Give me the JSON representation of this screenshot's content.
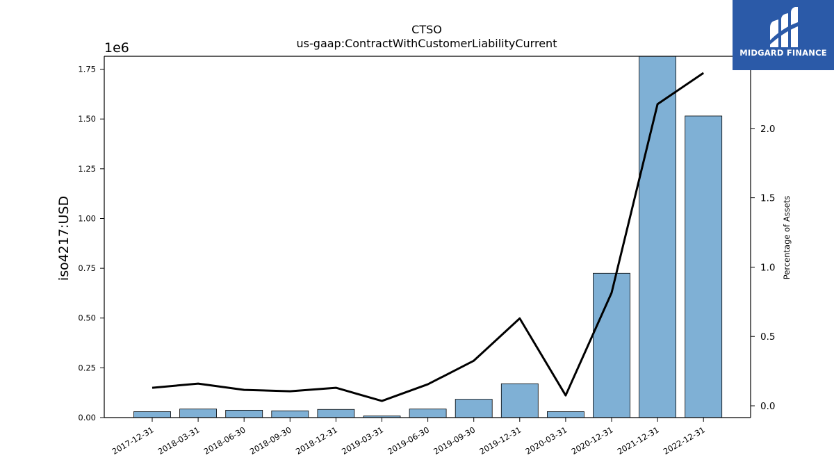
{
  "logo": {
    "text": "MIDGARD FINANCE",
    "background": "#2b5aa8"
  },
  "chart_data": {
    "type": "bar",
    "title": "CTSO",
    "subtitle": "us-gaap:ContractWithCustomerLiabilityCurrent",
    "ylabel": "iso4217:USD",
    "y_multiplier_label": "1e6",
    "y2label": "Percentage of Assets",
    "categories": [
      "2017-12-31",
      "2018-03-31",
      "2018-06-30",
      "2018-09-30",
      "2018-12-31",
      "2019-03-31",
      "2019-06-30",
      "2019-09-30",
      "2019-12-31",
      "2020-03-31",
      "2020-12-31",
      "2021-12-31",
      "2022-12-31"
    ],
    "series": [
      {
        "values": [
          30000,
          43000,
          37000,
          34000,
          41000,
          8000,
          43000,
          92000,
          170000,
          30000,
          725000,
          1815000,
          1515000
        ],
        "color": "#7fb0d5",
        "axis": "left"
      },
      {
        "values": [
          0.13,
          0.16,
          0.115,
          0.105,
          0.13,
          0.035,
          0.155,
          0.325,
          0.63,
          0.075,
          0.815,
          2.175,
          2.4
        ],
        "color": "#000000",
        "type": "line",
        "axis": "right"
      }
    ],
    "ylim": [
      0,
      1.815
    ],
    "y_ticks": [
      "0.00",
      "0.25",
      "0.50",
      "0.75",
      "1.00",
      "1.25",
      "1.50",
      "1.75"
    ],
    "y2lim": [
      -0.085,
      2.52
    ],
    "y2_ticks": [
      "0.0",
      "0.5",
      "1.0",
      "1.5",
      "2.0"
    ],
    "grid": false
  }
}
